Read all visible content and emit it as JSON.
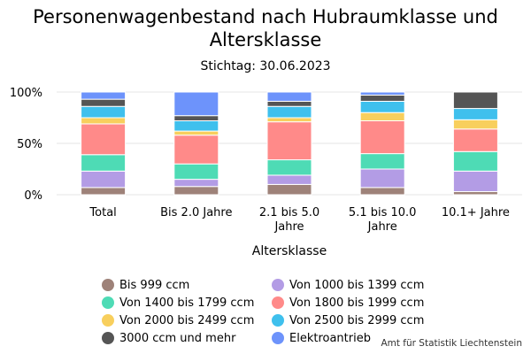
{
  "header": {
    "title": "Personenwagenbestand nach Hubraumklasse und\nAltersklasse",
    "subtitle": "Stichtag: 30.06.2023"
  },
  "source": "Amt für Statistik Liechtenstein",
  "chart_data": {
    "type": "bar",
    "stacked": true,
    "title": "Personenwagenbestand nach Hubraumklasse und Altersklasse",
    "subtitle": "Stichtag: 30.06.2023",
    "xlabel": "Altersklasse",
    "ylabel": "",
    "ylim": [
      0,
      1
    ],
    "yticks": [
      "0%",
      "50%",
      "100%"
    ],
    "grid": true,
    "legend_position": "bottom",
    "categories": [
      [
        "Total"
      ],
      [
        "Bis 2.0 Jahre"
      ],
      [
        "2.1 bis 5.0",
        "Jahre"
      ],
      [
        "5.1 bis 10.0",
        "Jahre"
      ],
      [
        "10.1+ Jahre"
      ]
    ],
    "series": [
      {
        "name": "Bis 999 ccm",
        "color": "#9e8279",
        "values": [
          0.07,
          0.08,
          0.1,
          0.07,
          0.03
        ]
      },
      {
        "name": "Von 1000 bis 1399 ccm",
        "color": "#b39ce5",
        "values": [
          0.16,
          0.07,
          0.09,
          0.18,
          0.2
        ]
      },
      {
        "name": "Von 1400 bis 1799 ccm",
        "color": "#4edbb5",
        "values": [
          0.16,
          0.15,
          0.15,
          0.15,
          0.19
        ]
      },
      {
        "name": "Von 1800 bis 1999 ccm",
        "color": "#ff8a89",
        "values": [
          0.3,
          0.28,
          0.37,
          0.32,
          0.22
        ]
      },
      {
        "name": "Von 2000 bis 2499 ccm",
        "color": "#f8cf5d",
        "values": [
          0.06,
          0.04,
          0.04,
          0.08,
          0.09
        ]
      },
      {
        "name": "Von 2500 bis 2999 ccm",
        "color": "#3fc0ed",
        "values": [
          0.11,
          0.1,
          0.11,
          0.11,
          0.11
        ]
      },
      {
        "name": "3000 ccm und mehr",
        "color": "#555555",
        "values": [
          0.07,
          0.05,
          0.05,
          0.06,
          0.16
        ]
      },
      {
        "name": "Elektroantrieb",
        "color": "#6d93fb",
        "values": [
          0.07,
          0.23,
          0.09,
          0.03,
          0.0
        ]
      }
    ]
  }
}
